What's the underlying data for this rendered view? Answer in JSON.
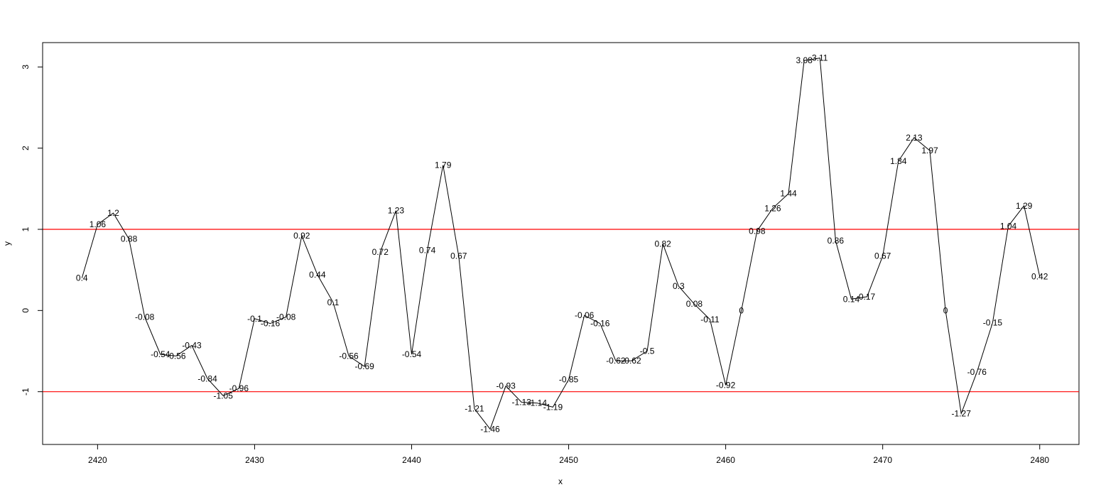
{
  "chart_data": {
    "type": "line",
    "title": "",
    "xlabel": "x",
    "ylabel": "y",
    "xlim": [
      2416.5,
      2482.5
    ],
    "ylim": [
      -1.65,
      3.3
    ],
    "x_ticks": [
      2420,
      2430,
      2440,
      2450,
      2460,
      2470,
      2480
    ],
    "y_ticks": [
      -1,
      0,
      1,
      2,
      3
    ],
    "grid": false,
    "line_color": "#000000",
    "reference_lines": [
      {
        "y": 1,
        "color": "#ff0000"
      },
      {
        "y": -1,
        "color": "#ff0000"
      }
    ],
    "series": [
      {
        "x": [
          2419,
          2420,
          2421,
          2422,
          2423,
          2424,
          2425,
          2426,
          2427,
          2428,
          2429,
          2430,
          2431,
          2432,
          2433,
          2434,
          2435,
          2436,
          2437,
          2438,
          2439,
          2440,
          2441,
          2442,
          2443,
          2444,
          2445,
          2446,
          2447,
          2448,
          2449,
          2450,
          2451,
          2452,
          2453,
          2454,
          2455,
          2456,
          2457,
          2458,
          2459,
          2460,
          2461,
          2462,
          2463,
          2464,
          2465,
          2466,
          2467,
          2468,
          2469,
          2470,
          2471,
          2472,
          2473,
          2474,
          2475,
          2476,
          2477,
          2478,
          2479,
          2480
        ],
        "values": [
          0.4,
          1.06,
          1.2,
          0.88,
          -0.08,
          -0.54,
          -0.56,
          -0.43,
          -0.84,
          -1.05,
          -0.96,
          -0.1,
          -0.16,
          -0.08,
          0.92,
          0.44,
          0.1,
          -0.56,
          -0.69,
          0.72,
          1.23,
          -0.54,
          0.74,
          1.79,
          0.67,
          -1.21,
          -1.46,
          -0.93,
          -1.13,
          -1.14,
          -1.19,
          -0.85,
          -0.06,
          -0.16,
          -0.62,
          -0.62,
          -0.5,
          0.82,
          0.3,
          0.08,
          -0.11,
          -0.92,
          0,
          0.98,
          1.26,
          1.44,
          3.08,
          3.11,
          0.86,
          0.14,
          0.17,
          0.67,
          1.84,
          2.13,
          1.97,
          0,
          -1.27,
          -0.76,
          -0.15,
          1.04,
          1.29,
          0.42
        ],
        "labels": [
          "0.4",
          "1.06",
          "1.2",
          "0.88",
          "-0.08",
          "-0.54",
          "-0.56",
          "-0.43",
          "-0.84",
          "-1.05",
          "-0.96",
          "-0.1",
          "-0.16",
          "-0.08",
          "0.92",
          "0.44",
          "0.1",
          "-0.56",
          "-0.69",
          "0.72",
          "1.23",
          "-0.54",
          "0.74",
          "1.79",
          "0.67",
          "-1.21",
          "-1.46",
          "-0.93",
          "-1.13",
          "-1.14",
          "-1.19",
          "-0.85",
          "-0.06",
          "-0.16",
          "-0.62",
          "-0.62",
          "-0.5",
          "0.82",
          "0.3",
          "0.08",
          "-0.11",
          "-0.92",
          "0",
          "0.98",
          "1.26",
          "1.44",
          "3.08",
          "3.11",
          "0.86",
          "0.14",
          "0.17",
          "0.67",
          "1.84",
          "2.13",
          "1.97",
          "0",
          "-1.27",
          "-0.76",
          "-0.15",
          "1.04",
          "1.29",
          "0.42"
        ]
      }
    ]
  }
}
